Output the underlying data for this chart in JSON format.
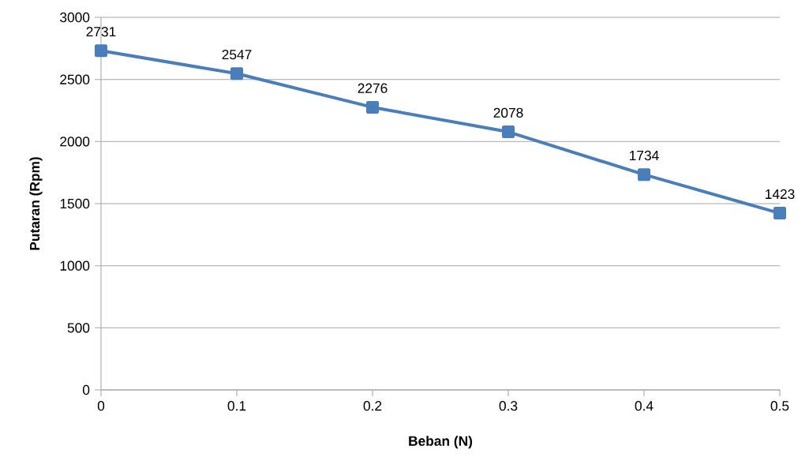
{
  "chart_data": {
    "type": "line",
    "xlabel": "Beban (N)",
    "ylabel": "Putaran (Rpm)",
    "x": [
      0,
      0.1,
      0.2,
      0.3,
      0.4,
      0.5
    ],
    "values": [
      2731,
      2547,
      2276,
      2078,
      1734,
      1423
    ],
    "color": "#4a7ebb",
    "marker": "square",
    "line_style": "solid",
    "data_labels": true,
    "grid": "y",
    "xlim": [
      0,
      0.5
    ],
    "xticks": [
      0,
      0.1,
      0.2,
      0.3,
      0.4,
      0.5
    ],
    "ylim": [
      0,
      3000
    ],
    "yticks": [
      0,
      500,
      1000,
      1500,
      2000,
      2500,
      3000
    ]
  }
}
